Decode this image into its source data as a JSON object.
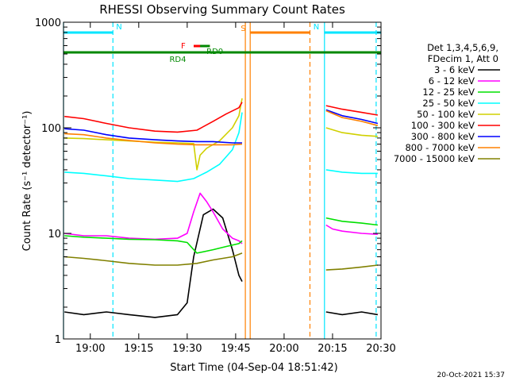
{
  "chart_data": {
    "type": "line",
    "title": "RHESSI Observing Summary Count Rates",
    "xlabel": "Start Time (04-Sep-04 18:51:42)",
    "ylabel": "Count Rate (s⁻¹ detector⁻¹)",
    "y_scale": "log",
    "ylim": [
      1,
      1000
    ],
    "xlim": [
      "18:51:42",
      "20:30:00"
    ],
    "x_ticks": [
      "19:00",
      "19:15",
      "19:30",
      "19:45",
      "20:00",
      "20:15",
      "20:30"
    ],
    "y_ticks": [
      "1",
      "10",
      "100",
      "1000"
    ],
    "grid": false,
    "legend_position": "right",
    "legend_header": [
      "Det 1,3,4,5,6,9,",
      "FDecim 1, Att 0"
    ],
    "series": [
      {
        "name": "3 - 6 keV",
        "color": "#000000",
        "segments": [
          {
            "x": [
              "18:52",
              "18:58",
              "19:05",
              "19:12",
              "19:20",
              "19:27",
              "19:30",
              "19:32",
              "19:35",
              "19:38",
              "19:41",
              "19:44",
              "19:46",
              "19:47"
            ],
            "y": [
              1.8,
              1.7,
              1.8,
              1.7,
              1.6,
              1.7,
              2.2,
              6,
              15,
              17,
              14,
              7,
              4,
              3.5
            ]
          },
          {
            "x": [
              "20:13",
              "20:18",
              "20:24",
              "20:29"
            ],
            "y": [
              1.8,
              1.7,
              1.8,
              1.7
            ]
          }
        ]
      },
      {
        "name": "6 - 12 keV",
        "color": "#ff00ff",
        "segments": [
          {
            "x": [
              "18:52",
              "18:58",
              "19:05",
              "19:12",
              "19:20",
              "19:27",
              "19:30",
              "19:32",
              "19:34",
              "19:36",
              "19:38",
              "19:41",
              "19:44",
              "19:46",
              "19:47"
            ],
            "y": [
              10,
              9.5,
              9.5,
              9,
              8.8,
              9,
              10,
              16,
              24,
              20,
              16,
              11,
              9,
              8.5,
              8
            ]
          },
          {
            "x": [
              "20:13",
              "20:15",
              "20:18",
              "20:24",
              "20:29"
            ],
            "y": [
              12,
              11,
              10.5,
              10,
              9.8
            ]
          }
        ]
      },
      {
        "name": "12 - 25 keV",
        "color": "#00e000",
        "segments": [
          {
            "x": [
              "18:52",
              "18:58",
              "19:05",
              "19:12",
              "19:20",
              "19:27",
              "19:30",
              "19:33",
              "19:38",
              "19:42",
              "19:46",
              "19:47"
            ],
            "y": [
              9.5,
              9.2,
              9,
              8.8,
              8.7,
              8.5,
              8.2,
              6.5,
              7,
              7.5,
              8,
              8.5
            ]
          },
          {
            "x": [
              "20:13",
              "20:18",
              "20:24",
              "20:29"
            ],
            "y": [
              14,
              13,
              12.5,
              12
            ]
          }
        ]
      },
      {
        "name": "25 - 50 keV",
        "color": "#00ffff",
        "segments": [
          {
            "x": [
              "18:52",
              "18:58",
              "19:05",
              "19:12",
              "19:20",
              "19:27",
              "19:32",
              "19:36",
              "19:40",
              "19:44",
              "19:46",
              "19:47"
            ],
            "y": [
              38,
              37,
              35,
              33,
              32,
              31,
              33,
              38,
              45,
              62,
              90,
              140
            ]
          },
          {
            "x": [
              "20:13",
              "20:18",
              "20:24",
              "20:29"
            ],
            "y": [
              40,
              38,
              37,
              37
            ]
          }
        ]
      },
      {
        "name": "50 - 100 keV",
        "color": "#d0d000",
        "segments": [
          {
            "x": [
              "18:52",
              "18:58",
              "19:05",
              "19:12",
              "19:20",
              "19:27",
              "19:32",
              "19:33",
              "19:34",
              "19:36",
              "19:40",
              "19:44",
              "19:46",
              "19:47"
            ],
            "y": [
              80,
              79,
              77,
              75,
              73,
              72,
              71,
              40,
              55,
              64,
              75,
              100,
              130,
              190
            ]
          },
          {
            "x": [
              "20:13",
              "20:18",
              "20:24",
              "20:29"
            ],
            "y": [
              100,
              90,
              85,
              83
            ]
          }
        ]
      },
      {
        "name": "100 - 300 keV",
        "color": "#ff0000",
        "segments": [
          {
            "x": [
              "18:52",
              "18:58",
              "19:05",
              "19:12",
              "19:20",
              "19:27",
              "19:33",
              "19:38",
              "19:42",
              "19:46",
              "19:47"
            ],
            "y": [
              128,
              122,
              110,
              100,
              93,
              91,
              95,
              115,
              135,
              155,
              175
            ]
          },
          {
            "x": [
              "20:13",
              "20:18",
              "20:24",
              "20:29"
            ],
            "y": [
              162,
              150,
              140,
              132
            ]
          }
        ]
      },
      {
        "name": "300 - 800 keV",
        "color": "#0000ff",
        "segments": [
          {
            "x": [
              "18:52",
              "18:58",
              "19:05",
              "19:12",
              "19:20",
              "19:27",
              "19:33",
              "19:38",
              "19:44",
              "19:47"
            ],
            "y": [
              98,
              95,
              86,
              80,
              77,
              75,
              74,
              74,
              72,
              72
            ]
          },
          {
            "x": [
              "20:13",
              "20:18",
              "20:24",
              "20:29"
            ],
            "y": [
              148,
              130,
              120,
              110
            ]
          }
        ]
      },
      {
        "name": "800 - 7000 keV",
        "color": "#ff8000",
        "segments": [
          {
            "x": [
              "18:52",
              "18:58",
              "19:05",
              "19:12",
              "19:20",
              "19:27",
              "19:33",
              "19:38",
              "19:44",
              "19:47"
            ],
            "y": [
              88,
              86,
              80,
              76,
              72,
              70,
              69,
              69,
              69,
              70
            ]
          },
          {
            "x": [
              "20:13",
              "20:18",
              "20:24",
              "20:29"
            ],
            "y": [
              145,
              125,
              115,
              105
            ]
          }
        ]
      },
      {
        "name": "7000 - 15000 keV",
        "color": "#808000",
        "segments": [
          {
            "x": [
              "18:52",
              "18:58",
              "19:05",
              "19:12",
              "19:20",
              "19:27",
              "19:33",
              "19:38",
              "19:44",
              "19:47"
            ],
            "y": [
              6,
              5.8,
              5.5,
              5.2,
              5,
              5,
              5.2,
              5.6,
              6,
              6.5
            ]
          },
          {
            "x": [
              "20:13",
              "20:18",
              "20:24",
              "20:29"
            ],
            "y": [
              4.5,
              4.6,
              4.8,
              5
            ]
          }
        ]
      }
    ],
    "flags": [
      {
        "label": "N",
        "color": "#00e5ff",
        "style": "solid",
        "position": "top",
        "x_start": "18:51:42",
        "x_end": "19:07:00"
      },
      {
        "label": "N",
        "color": "#00e5ff",
        "style": "solid",
        "position": "top",
        "x_start": "20:12:30",
        "x_end": "20:30:00"
      },
      {
        "label": "S",
        "color": "#ff8000",
        "style": "solid",
        "position": "top",
        "x_start": "19:49:30",
        "x_end": "20:08:00"
      },
      {
        "label": "F",
        "color": "#ff0000",
        "style": "solid",
        "position": "upper",
        "x_start": "19:32:00",
        "x_end": "19:37:00"
      },
      {
        "label": "RD0",
        "color": "#008800",
        "style": "solid",
        "position": "upper",
        "x_start": "19:34:00",
        "x_end": "19:37:00"
      },
      {
        "label": "RD4",
        "color": "#008800",
        "style": "solid",
        "position": "middle",
        "x_start": "18:51:42",
        "x_end": "20:30:00"
      }
    ],
    "vertical_markers": [
      {
        "x": "18:51:42",
        "color": "#00e5ff",
        "style": "solid"
      },
      {
        "x": "19:07:00",
        "color": "#00e5ff",
        "style": "dashed"
      },
      {
        "x": "19:48:00",
        "color": "#ff8000",
        "style": "solid"
      },
      {
        "x": "19:49:30",
        "color": "#ff8000",
        "style": "solid"
      },
      {
        "x": "20:08:00",
        "color": "#ff8000",
        "style": "dashed"
      },
      {
        "x": "20:12:30",
        "color": "#00e5ff",
        "style": "solid"
      },
      {
        "x": "20:28:30",
        "color": "#00e5ff",
        "style": "dashed"
      }
    ]
  },
  "footer": {
    "timestamp": "20-Oct-2021 15:37"
  }
}
